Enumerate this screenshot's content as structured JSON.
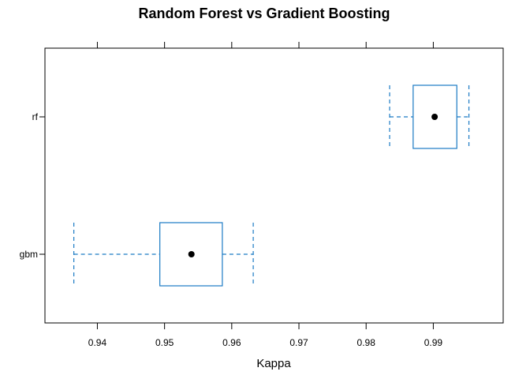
{
  "chart_data": {
    "type": "boxplot",
    "title": "Random Forest vs Gradient Boosting",
    "xlabel": "Kappa",
    "ylabel": "",
    "xlim": [
      0.9322,
      1.0004
    ],
    "xticks": [
      0.94,
      0.95,
      0.96,
      0.97,
      0.98,
      0.99
    ],
    "x_tick_labels": [
      "0.94",
      "0.95",
      "0.96",
      "0.97",
      "0.98",
      "0.99"
    ],
    "categories": [
      "rf",
      "gbm"
    ],
    "series": [
      {
        "name": "rf",
        "whisker_low": 0.9835,
        "q1": 0.987,
        "median": 0.9902,
        "q3": 0.9935,
        "whisker_high": 0.9953
      },
      {
        "name": "gbm",
        "whisker_low": 0.9365,
        "q1": 0.9493,
        "median": 0.954,
        "q3": 0.9586,
        "whisker_high": 0.9632
      }
    ],
    "colors": {
      "box": "#1a7ac4",
      "median": "#000000",
      "axis": "#000000"
    },
    "grid": false
  }
}
